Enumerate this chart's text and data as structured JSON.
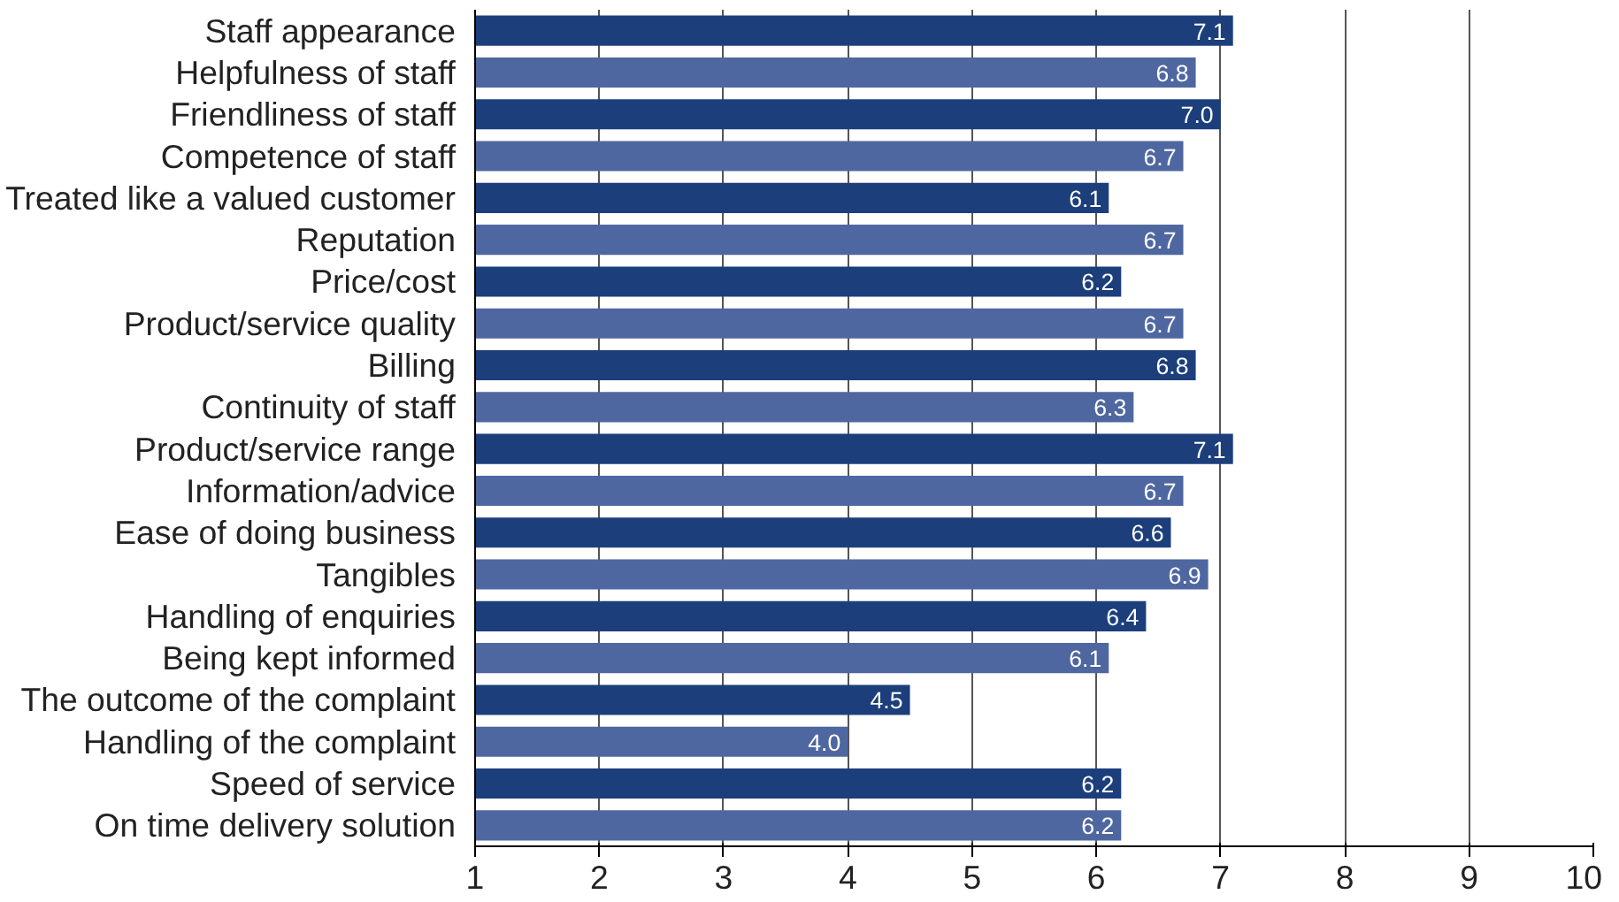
{
  "chart_data": {
    "type": "bar",
    "orientation": "horizontal",
    "categories": [
      "Staff appearance",
      "Helpfulness of staff",
      "Friendliness of staff",
      "Competence of staff",
      "Treated like a valued customer",
      "Reputation",
      "Price/cost",
      "Product/service quality",
      "Billing",
      "Continuity of staff",
      "Product/service range",
      "Information/advice",
      "Ease of doing business",
      "Tangibles",
      "Handling of enquiries",
      "Being kept informed",
      "The outcome of the complaint",
      "Handling of the complaint",
      "Speed of service",
      "On time delivery solution"
    ],
    "values": [
      7.1,
      6.8,
      7.0,
      6.7,
      6.1,
      6.7,
      6.2,
      6.7,
      6.8,
      6.3,
      7.1,
      6.7,
      6.6,
      6.9,
      6.4,
      6.1,
      4.5,
      4.0,
      6.2,
      6.2
    ],
    "value_labels": [
      "7.1",
      "6.8",
      "7.0",
      "6.7",
      "6.1",
      "6.7",
      "6.2",
      "6.7",
      "6.8",
      "6.3",
      "7.1",
      "6.7",
      "6.6",
      "6.9",
      "6.4",
      "6.1",
      "4.5",
      "4.0",
      "6.2",
      "6.2"
    ],
    "colors": [
      "#1c3f7c",
      "#4f67a0",
      "#1c3f7c",
      "#4f67a0",
      "#1c3f7c",
      "#4f67a0",
      "#1c3f7c",
      "#4f67a0",
      "#1c3f7c",
      "#4f67a0",
      "#1c3f7c",
      "#4f67a0",
      "#1c3f7c",
      "#4f67a0",
      "#1c3f7c",
      "#4f67a0",
      "#1c3f7c",
      "#4f67a0",
      "#1c3f7c",
      "#4f67a0"
    ],
    "xlim": [
      1,
      10
    ],
    "xticks": [
      1,
      2,
      3,
      4,
      5,
      6,
      7,
      8,
      9,
      10
    ],
    "grid": "x"
  }
}
